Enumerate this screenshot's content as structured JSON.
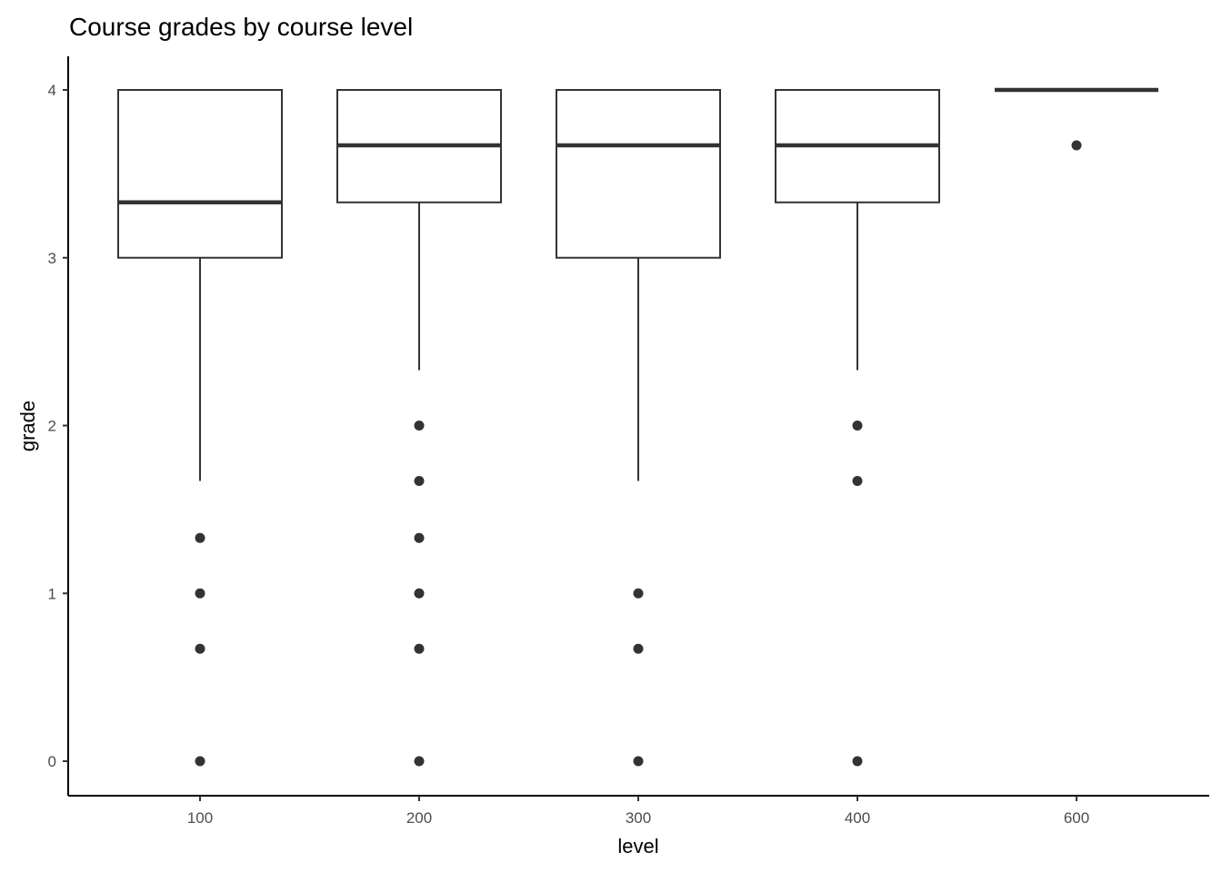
{
  "chart_data": {
    "type": "boxplot",
    "title": "Course grades by course level",
    "xlabel": "level",
    "ylabel": "grade",
    "ylim": [
      -0.2,
      4.2
    ],
    "yticks": [
      0,
      1,
      2,
      3,
      4
    ],
    "categories": [
      "100",
      "200",
      "300",
      "400",
      "600"
    ],
    "grid": false,
    "boxes": [
      {
        "category": "100",
        "lower_whisker": 1.67,
        "q1": 3,
        "median": 3.33,
        "q3": 4,
        "upper_whisker": 4,
        "outliers": [
          1.33,
          1,
          0.67,
          0
        ]
      },
      {
        "category": "200",
        "lower_whisker": 2.33,
        "q1": 3.33,
        "median": 3.67,
        "q3": 4,
        "upper_whisker": 4,
        "outliers": [
          2,
          1.67,
          1.33,
          1,
          0.67,
          0
        ]
      },
      {
        "category": "300",
        "lower_whisker": 1.67,
        "q1": 3,
        "median": 3.67,
        "q3": 4,
        "upper_whisker": 4,
        "outliers": [
          1,
          0.67,
          0
        ]
      },
      {
        "category": "400",
        "lower_whisker": 2.33,
        "q1": 3.33,
        "median": 3.67,
        "q3": 4,
        "upper_whisker": 4,
        "outliers": [
          2,
          1.67,
          0
        ]
      },
      {
        "category": "600",
        "lower_whisker": 4,
        "q1": 4,
        "median": 4,
        "q3": 4,
        "upper_whisker": 4,
        "outliers": [
          3.67
        ]
      }
    ],
    "colors": {
      "line": "#333333",
      "fill": "#ffffff",
      "axis": "#000000"
    }
  }
}
